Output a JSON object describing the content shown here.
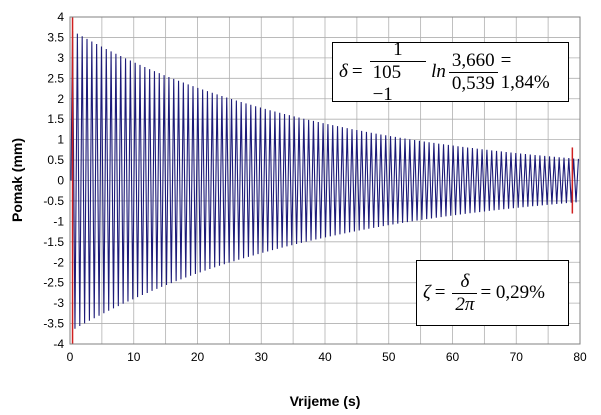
{
  "chart_data": {
    "type": "line",
    "title": "",
    "xlabel": "Vrijeme (s)",
    "ylabel": "Pomak (mm)",
    "xlim": [
      0,
      80
    ],
    "ylim": [
      -4,
      4
    ],
    "x_ticks": [
      "0",
      "10",
      "20",
      "30",
      "40",
      "50",
      "60",
      "70",
      "80"
    ],
    "y_ticks": [
      "4",
      "3.5",
      "3",
      "2.5",
      "2",
      "1.5",
      "1",
      "0.5",
      "0",
      "-0.5",
      "-1",
      "-1.5",
      "-2",
      "-2.5",
      "-3",
      "-3.5",
      "-4"
    ],
    "grid": true,
    "series": [
      {
        "color": "#1c1a78",
        "signal": "decaying oscillation",
        "start_time": 0.4,
        "peak_start": 3.66,
        "end_time": 79,
        "peak_end": 0.539,
        "cycles_between_markers": 104
      }
    ],
    "markers": [
      {
        "x": 0.4,
        "color": "#d02020"
      },
      {
        "x": 78.8,
        "color": "#d02020"
      }
    ],
    "annotations": {
      "delta": {
        "symbol": "δ",
        "frac1_num": "1",
        "frac1_den": "105 −1",
        "ln": "ln",
        "frac2_num": "3,660",
        "frac2_den": "0,539",
        "result": "= 1,84%"
      },
      "zeta": {
        "symbol": "ζ",
        "frac_num": "δ",
        "frac_den": "2π",
        "result": "= 0,29%"
      }
    }
  }
}
